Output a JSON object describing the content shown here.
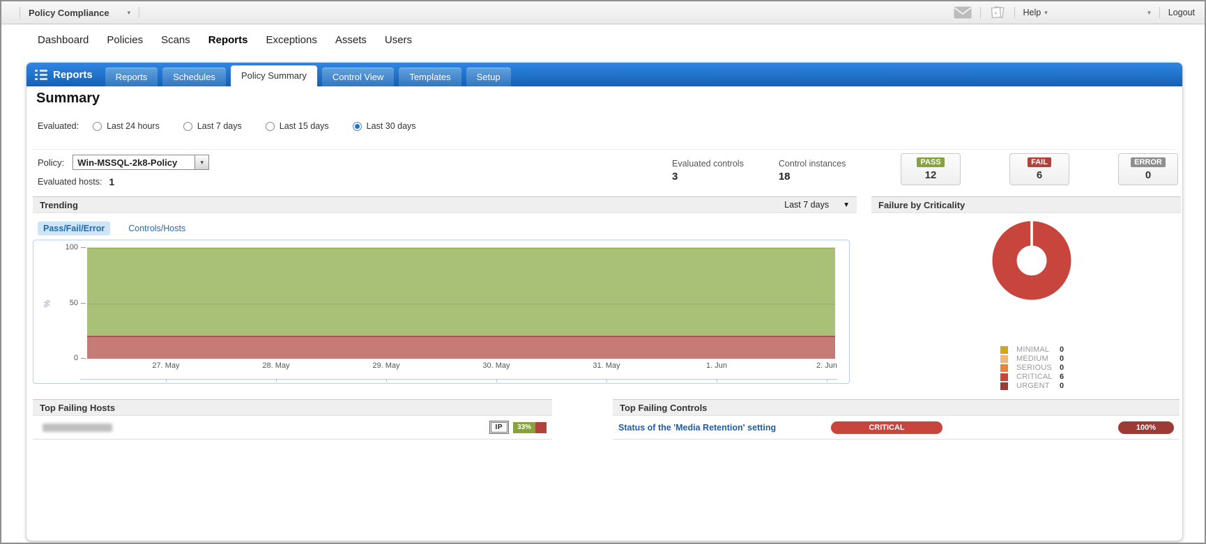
{
  "icons": {
    "chevron_down": "▾",
    "dropdown_arrow": "▼"
  },
  "topbar": {
    "app_menu": "Policy Compliance",
    "help_label": "Help",
    "logout_label": "Logout"
  },
  "nav": {
    "items": [
      "Dashboard",
      "Policies",
      "Scans",
      "Reports",
      "Exceptions",
      "Assets",
      "Users"
    ],
    "active": "Reports"
  },
  "reports_bar": {
    "title": "Reports",
    "tabs": [
      "Reports",
      "Schedules",
      "Policy Summary",
      "Control View",
      "Templates",
      "Setup"
    ],
    "active_tab": "Policy Summary"
  },
  "summary": {
    "heading": "Summary",
    "evaluated_label": "Evaluated:",
    "evaluated_options": [
      "Last 24 hours",
      "Last 7 days",
      "Last 15 days",
      "Last 30 days"
    ],
    "evaluated_selected": "Last 30 days",
    "policy_label": "Policy:",
    "policy_value": "Win-MSSQL-2k8-Policy",
    "evaluated_hosts_label": "Evaluated hosts:",
    "evaluated_hosts_value": "1",
    "stats": [
      {
        "label": "Evaluated controls",
        "value": "3"
      },
      {
        "label": "Control instances",
        "value": "18"
      }
    ],
    "status_cards": [
      {
        "label": "PASS",
        "value": "12",
        "color": "#86a33e"
      },
      {
        "label": "FAIL",
        "value": "6",
        "color": "#b2423c"
      },
      {
        "label": "ERROR",
        "value": "0",
        "color": "#8f8f8f"
      }
    ]
  },
  "trending": {
    "title": "Trending",
    "range_label": "Last 7 days",
    "views": [
      "Pass/Fail/Error",
      "Controls/Hosts"
    ],
    "active_view": "Pass/Fail/Error"
  },
  "failure_panel": {
    "title": "Failure by Criticality"
  },
  "chart_data": [
    {
      "type": "area",
      "title": "Trending - Pass/Fail/Error",
      "stacked": true,
      "x": [
        "27. May",
        "28. May",
        "29. May",
        "30. May",
        "31. May",
        "1. Jun",
        "2. Jun"
      ],
      "series": [
        {
          "name": "Pass",
          "color": "#a9c077",
          "values": [
            79,
            79,
            79,
            79,
            79,
            79,
            79
          ]
        },
        {
          "name": "Fail",
          "color": "#c67b77",
          "values": [
            21,
            21,
            21,
            21,
            21,
            21,
            21
          ]
        },
        {
          "name": "Error",
          "color": "#9aa7b5",
          "values": [
            0,
            0,
            0,
            0,
            0,
            0,
            0
          ]
        }
      ],
      "ylabel": "%",
      "ylim": [
        0,
        100
      ],
      "yticks": [
        0,
        50,
        100
      ],
      "grid": true,
      "legend": false
    },
    {
      "type": "pie",
      "subtype": "donut",
      "title": "Failure by Criticality",
      "labels": [
        "MINIMAL",
        "MEDIUM",
        "SERIOUS",
        "CRITICAL",
        "URGENT"
      ],
      "values": [
        0,
        0,
        0,
        6,
        0
      ],
      "colors": [
        "#d2a51c",
        "#f4b678",
        "#e8823d",
        "#c8453e",
        "#9c3b35"
      ],
      "legend_position": "bottom"
    }
  ],
  "top_failing_hosts": {
    "title": "Top Failing Hosts",
    "rows": [
      {
        "host": "",
        "host_redacted": true,
        "ip_badge": "IP",
        "pass_pct": 67,
        "fail_pct": 33,
        "fail_label": "33%"
      }
    ]
  },
  "top_failing_controls": {
    "title": "Top Failing Controls",
    "rows": [
      {
        "control": "Status of the 'Media Retention' setting",
        "criticality": "CRITICAL",
        "fail_pct": "100%"
      }
    ]
  }
}
